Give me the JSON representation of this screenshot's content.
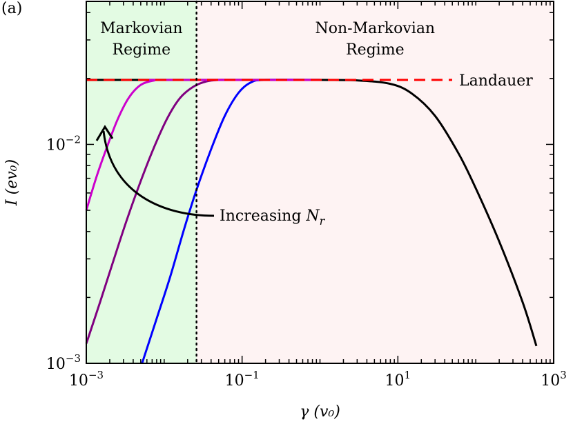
{
  "chart_data": {
    "type": "line",
    "panel_label": "(a)",
    "xscale": "log",
    "yscale": "log",
    "xlim": [
      0.001,
      1000
    ],
    "ylim": [
      0.001,
      0.045
    ],
    "xlabel": "γ (v₀)",
    "ylabel": "I (ev₀)",
    "x_ticks": [
      {
        "value": 0.001,
        "base": "10",
        "exp": "−3"
      },
      {
        "value": 0.1,
        "base": "10",
        "exp": "−1"
      },
      {
        "value": 10,
        "base": "10",
        "exp": "1"
      },
      {
        "value": 1000,
        "base": "10",
        "exp": "3"
      }
    ],
    "y_ticks": [
      {
        "value": 0.001,
        "base": "10",
        "exp": "−3"
      },
      {
        "value": 0.01,
        "base": "10",
        "exp": "−2"
      }
    ],
    "regions": [
      {
        "name": "markovian",
        "label_lines": [
          "Markovian",
          "Regime"
        ],
        "x_range": [
          0.001,
          0.026
        ],
        "color": "#e3fbe3"
      },
      {
        "name": "non-markovian",
        "label_lines": [
          "Non-Markovian",
          "Regime"
        ],
        "x_range": [
          0.026,
          1000
        ],
        "color": "#fef3f3"
      }
    ],
    "boundary_x": 0.026,
    "landauer": {
      "label": "Landauer",
      "value": 0.0197,
      "color": "#ff0000"
    },
    "annotation": {
      "text_prefix": "Increasing ",
      "symbol": "N",
      "subscript": "r"
    },
    "series": [
      {
        "name": "N_r smallest",
        "color": "#000000",
        "x": [
          0.001,
          0.003,
          0.01,
          0.1,
          1,
          3,
          8,
          15,
          30,
          60,
          100,
          200,
          400,
          600
        ],
        "y": [
          0.0197,
          0.0197,
          0.0197,
          0.0197,
          0.0197,
          0.0196,
          0.0189,
          0.0171,
          0.0135,
          0.0091,
          0.0063,
          0.0036,
          0.0019,
          0.0012
        ]
      },
      {
        "name": "N_r medium",
        "color": "#0000ff",
        "x": [
          0.0052,
          0.008,
          0.012,
          0.018,
          0.026,
          0.04,
          0.06,
          0.09,
          0.13,
          0.2,
          1
        ],
        "y": [
          0.001,
          0.0016,
          0.0025,
          0.0041,
          0.0062,
          0.0095,
          0.0135,
          0.0172,
          0.0192,
          0.0197,
          0.0197
        ]
      },
      {
        "name": "N_r large",
        "color": "#800080",
        "x": [
          0.001,
          0.0015,
          0.0022,
          0.0033,
          0.005,
          0.0075,
          0.011,
          0.016,
          0.024,
          0.035,
          0.05,
          0.08,
          1
        ],
        "y": [
          0.00123,
          0.0019,
          0.0029,
          0.0045,
          0.0068,
          0.0098,
          0.0132,
          0.0163,
          0.0184,
          0.0194,
          0.0197,
          0.0197,
          0.0197
        ]
      },
      {
        "name": "N_r largest",
        "color": "#cc00cc",
        "x": [
          0.001,
          0.00135,
          0.0018,
          0.0025,
          0.0035,
          0.005,
          0.0075,
          0.01,
          1
        ],
        "y": [
          0.005,
          0.0071,
          0.0095,
          0.0129,
          0.0163,
          0.0187,
          0.0196,
          0.0197,
          0.0197
        ]
      }
    ]
  }
}
